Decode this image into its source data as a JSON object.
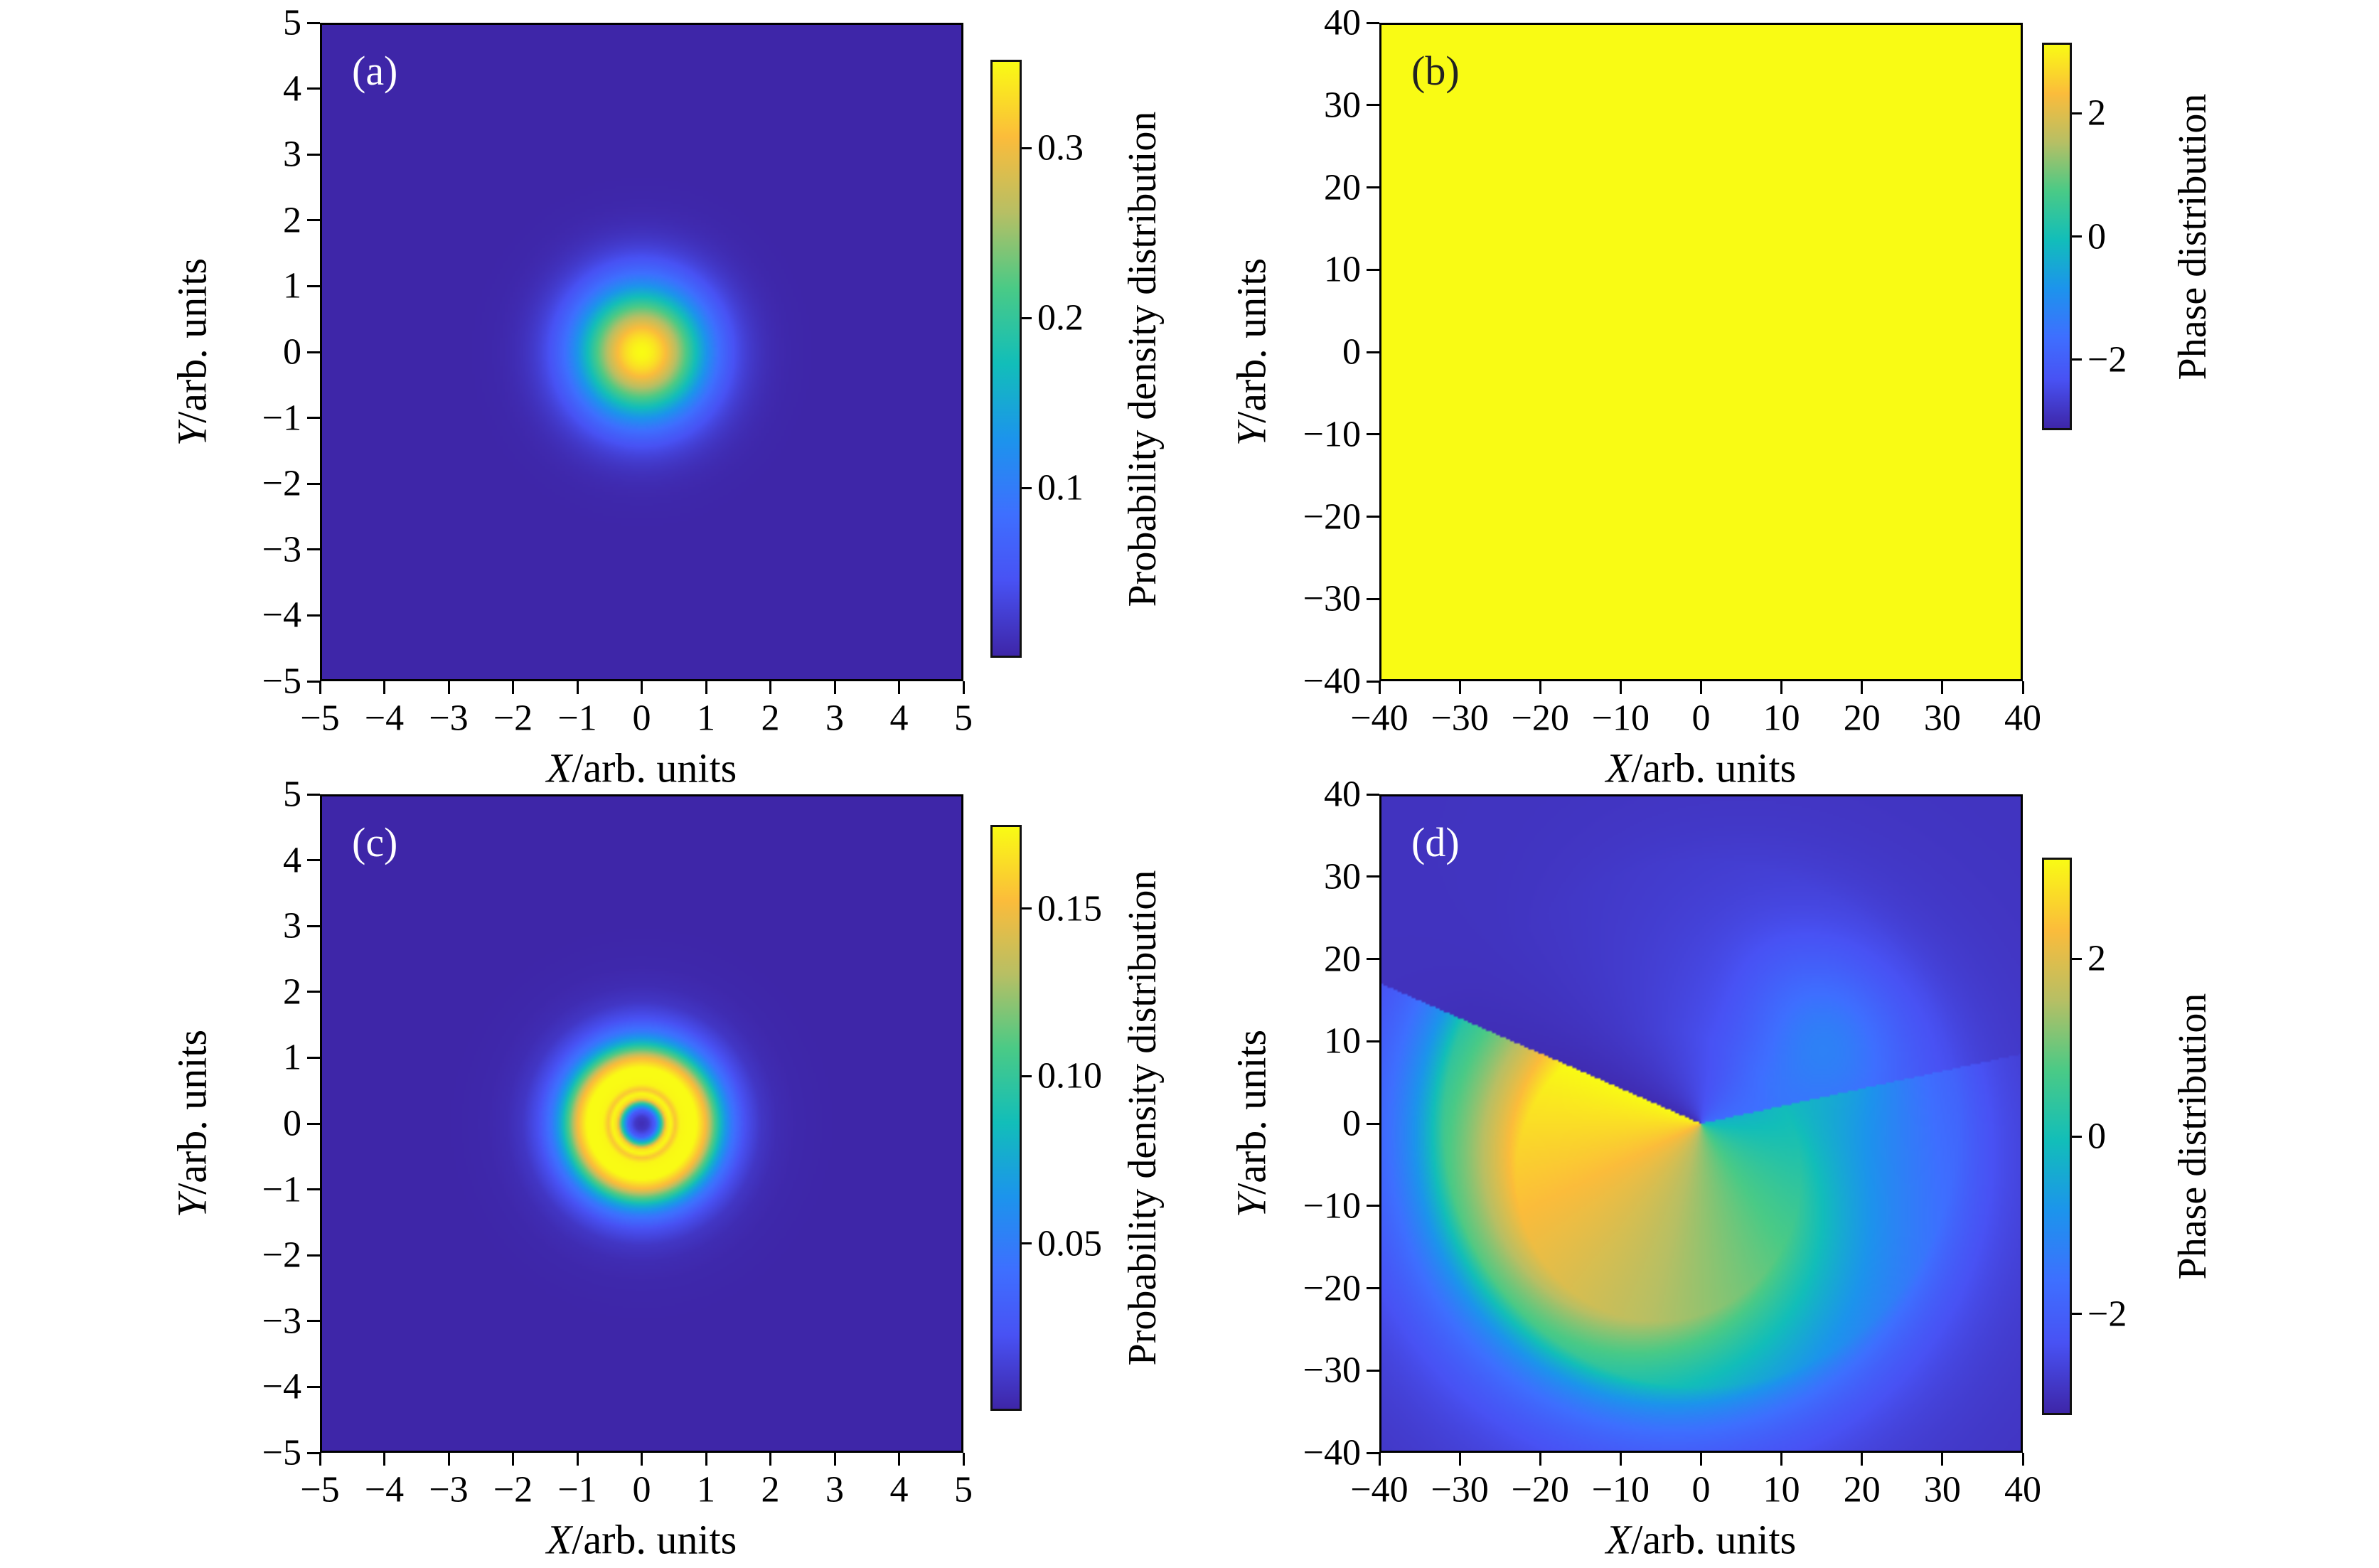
{
  "chart_data": {
    "type": "heatmap",
    "layout_hint": "2x2 grid of square heatmap panels, each with its own vertical colorbar on the right, grid off, serif (LaTeX-style) labels",
    "colormap": {
      "name": "parula",
      "stops": [
        [
          0.0,
          "#3E26A8"
        ],
        [
          0.127,
          "#4852F4"
        ],
        [
          0.238,
          "#3E6FFF"
        ],
        [
          0.365,
          "#1C94EC"
        ],
        [
          0.492,
          "#12BEB9"
        ],
        [
          0.619,
          "#4ACA86"
        ],
        [
          0.746,
          "#B7BF64"
        ],
        [
          0.873,
          "#FBBC3B"
        ],
        [
          1.0,
          "#F9FB14"
        ]
      ]
    },
    "panels": [
      {
        "id": "a",
        "label": "(a)",
        "label_color": "#ffffff",
        "x_axis": {
          "variable": "X",
          "unit_suffix": "/arb. units"
        },
        "y_axis": {
          "variable": "Y",
          "unit_suffix": "/arb. units"
        },
        "xlim": [
          -5,
          5
        ],
        "ylim": [
          -5,
          5
        ],
        "x_ticks": [
          -5,
          -4,
          -3,
          -2,
          -1,
          0,
          1,
          2,
          3,
          4,
          5
        ],
        "x_tick_labels": [
          "−5",
          "−4",
          "−3",
          "−2",
          "−1",
          "0",
          "1",
          "2",
          "3",
          "4",
          "5"
        ],
        "y_ticks": [
          5,
          4,
          3,
          2,
          1,
          0,
          -1,
          -2,
          -3,
          -4,
          -5
        ],
        "y_tick_labels": [
          "5",
          "4",
          "3",
          "2",
          "1",
          "0",
          "−1",
          "−2",
          "−3",
          "−4",
          "−5"
        ],
        "colorbar": {
          "label": "Probability density distribution",
          "vmin": 0,
          "vmax": 0.352,
          "ticks": [
            0.3,
            0.2,
            0.1
          ],
          "tick_labels": [
            "0.3",
            "0.2",
            "0.1"
          ]
        },
        "field": {
          "type": "gaussian",
          "center": [
            0,
            0
          ],
          "amplitude": 0.352,
          "sigma2": 1.0
        }
      },
      {
        "id": "b",
        "label": "(b)",
        "label_color": "#222222",
        "x_axis": {
          "variable": "X",
          "unit_suffix": "/arb. units"
        },
        "y_axis": {
          "variable": "Y",
          "unit_suffix": "/arb. units"
        },
        "xlim": [
          -40,
          40
        ],
        "ylim": [
          -40,
          40
        ],
        "x_ticks": [
          -40,
          -30,
          -20,
          -10,
          0,
          10,
          20,
          30,
          40
        ],
        "x_tick_labels": [
          "−40",
          "−30",
          "−20",
          "−10",
          "0",
          "10",
          "20",
          "30",
          "40"
        ],
        "y_ticks": [
          40,
          30,
          20,
          10,
          0,
          -10,
          -20,
          -30,
          -40
        ],
        "y_tick_labels": [
          "40",
          "30",
          "20",
          "10",
          "0",
          "−10",
          "−20",
          "−30",
          "−40"
        ],
        "colorbar": {
          "label": "Phase distribution",
          "vmin": -3.1416,
          "vmax": 3.1416,
          "ticks": [
            2,
            0,
            -2
          ],
          "tick_labels": [
            "2",
            "0",
            "−2"
          ]
        },
        "field": {
          "type": "constant",
          "value": 3.1416
        }
      },
      {
        "id": "c",
        "label": "(c)",
        "label_color": "#ffffff",
        "x_axis": {
          "variable": "X",
          "unit_suffix": "/arb. units"
        },
        "y_axis": {
          "variable": "Y",
          "unit_suffix": "/arb. units"
        },
        "xlim": [
          -5,
          5
        ],
        "ylim": [
          -5,
          5
        ],
        "x_ticks": [
          -5,
          -4,
          -3,
          -2,
          -1,
          0,
          1,
          2,
          3,
          4,
          5
        ],
        "x_tick_labels": [
          "−5",
          "−4",
          "−3",
          "−2",
          "−1",
          "0",
          "1",
          "2",
          "3",
          "4",
          "5"
        ],
        "y_ticks": [
          5,
          4,
          3,
          2,
          1,
          0,
          -1,
          -2,
          -3,
          -4,
          -5
        ],
        "y_tick_labels": [
          "5",
          "4",
          "3",
          "2",
          "1",
          "0",
          "−1",
          "−2",
          "−3",
          "−4",
          "−5"
        ],
        "colorbar": {
          "label": "Probability density distribution",
          "vmin": 0,
          "vmax": 0.175,
          "ticks": [
            0.15,
            0.1,
            0.05
          ],
          "tick_labels": [
            "0.15",
            "0.10",
            "0.05"
          ]
        },
        "field": {
          "type": "radial_profile",
          "center": [
            0,
            0
          ],
          "amplitude": 0.175,
          "r": [
            0.0,
            0.1,
            0.2,
            0.3,
            0.38,
            0.45,
            0.52,
            0.6,
            0.7,
            0.85,
            1.0,
            1.1,
            1.25,
            1.4,
            1.6,
            1.85,
            2.1,
            2.4,
            2.8,
            3.2,
            7.0
          ],
          "f": [
            0.02,
            0.05,
            0.16,
            0.52,
            0.93,
            1.0,
            0.89,
            0.99,
            1.0,
            1.0,
            0.86,
            0.68,
            0.44,
            0.27,
            0.125,
            0.048,
            0.018,
            0.006,
            0.0015,
            0.0,
            0.0
          ]
        }
      },
      {
        "id": "d",
        "label": "(d)",
        "label_color": "#ffffff",
        "x_axis": {
          "variable": "X",
          "unit_suffix": "/arb. units"
        },
        "y_axis": {
          "variable": "Y",
          "unit_suffix": "/arb. units"
        },
        "xlim": [
          -40,
          40
        ],
        "ylim": [
          -40,
          40
        ],
        "x_ticks": [
          -40,
          -30,
          -20,
          -10,
          0,
          10,
          20,
          30,
          40
        ],
        "x_tick_labels": [
          "−40",
          "−30",
          "−20",
          "−10",
          "0",
          "10",
          "20",
          "30",
          "40"
        ],
        "y_ticks": [
          40,
          30,
          20,
          10,
          0,
          -10,
          -20,
          -30,
          -40
        ],
        "y_tick_labels": [
          "40",
          "30",
          "20",
          "10",
          "0",
          "−10",
          "−20",
          "−30",
          "−40"
        ],
        "colorbar": {
          "label": "Phase distribution",
          "vmin": -3.1416,
          "vmax": 3.1416,
          "ticks": [
            2,
            0,
            -2
          ],
          "tick_labels": [
            "2",
            "0",
            "−2"
          ]
        },
        "field": {
          "type": "vortex",
          "core": [
            0,
            0
          ],
          "theta0": 0.2094,
          "slope": 0.93,
          "phi0": -0.35,
          "base": -2.9,
          "disc_center": [
            -5.3,
            -6.3
          ],
          "disc_radius": 17.7,
          "outer_decay": 20,
          "far_radius": 32,
          "far_decay": 10,
          "wedge_factor": 0.55,
          "halo": {
            "theta0": 0.5934,
            "theta_sigma": 0.55,
            "r0": 19,
            "r_sigma": 9,
            "amp": 1.0
          },
          "clamp": [
            -3.1416,
            3.1416
          ]
        }
      }
    ]
  }
}
